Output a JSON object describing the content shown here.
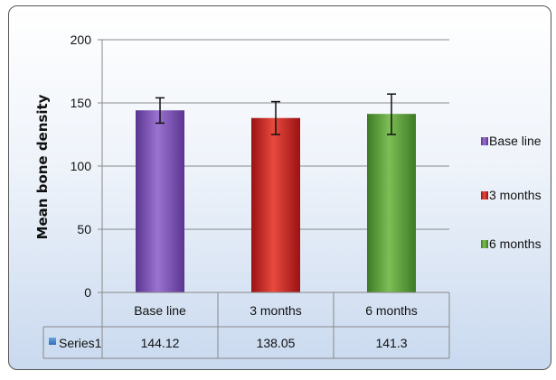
{
  "chart_data": {
    "type": "bar",
    "title": "",
    "xlabel": "",
    "ylabel": "Mean bone density",
    "ylim": [
      0,
      200
    ],
    "yticks": [
      0,
      50,
      100,
      150,
      200
    ],
    "grid": true,
    "legend_position": "right",
    "categories": [
      "Base line",
      "3 months",
      "6 months"
    ],
    "series": [
      {
        "name": "Series1",
        "values": [
          144.12,
          138.05,
          141.3
        ],
        "error_upper": [
          154,
          151,
          157
        ],
        "error_lower": [
          134,
          125,
          125
        ],
        "colors": [
          "#7a4fb3",
          "#c42020",
          "#5a9a3c"
        ]
      }
    ],
    "table": {
      "row_label": "Series1",
      "values": [
        "144.12",
        "138.05",
        "141.3"
      ]
    },
    "legend": [
      "Base line",
      "3 months",
      "6 months"
    ]
  }
}
